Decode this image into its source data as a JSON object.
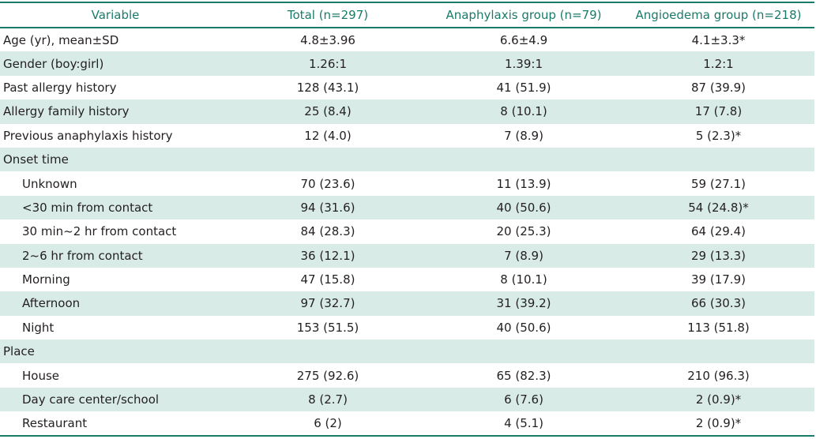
{
  "table": {
    "headers": [
      "Variable",
      "Total (n=297)",
      "Anaphylaxis group (n=79)",
      "Angioedema group (n=218)"
    ],
    "rows": [
      {
        "variable": "Age (yr), mean±SD",
        "total": "4.8±3.96",
        "anaphylaxis": "6.6±4.9",
        "angioedema": "4.1±3.3*",
        "indent": false
      },
      {
        "variable": "Gender (boy:girl)",
        "total": "1.26:1",
        "anaphylaxis": "1.39:1",
        "angioedema": "1.2:1",
        "indent": false
      },
      {
        "variable": "Past allergy history",
        "total": "128 (43.1)",
        "anaphylaxis": "41 (51.9)",
        "angioedema": "87 (39.9)",
        "indent": false
      },
      {
        "variable": "Allergy family history",
        "total": "25 (8.4)",
        "anaphylaxis": "8 (10.1)",
        "angioedema": "17 (7.8)",
        "indent": false
      },
      {
        "variable": "Previous anaphylaxis history",
        "total": "12 (4.0)",
        "anaphylaxis": "7 (8.9)",
        "angioedema": "5 (2.3)*",
        "indent": false
      },
      {
        "variable": "Onset time",
        "total": "",
        "anaphylaxis": "",
        "angioedema": "",
        "indent": false
      },
      {
        "variable": "Unknown",
        "total": "70 (23.6)",
        "anaphylaxis": "11 (13.9)",
        "angioedema": "59 (27.1)",
        "indent": true
      },
      {
        "variable": "<30 min from contact",
        "total": "94 (31.6)",
        "anaphylaxis": "40 (50.6)",
        "angioedema": "54 (24.8)*",
        "indent": true
      },
      {
        "variable": "30 min~2 hr from contact",
        "total": "84 (28.3)",
        "anaphylaxis": "20 (25.3)",
        "angioedema": "64 (29.4)",
        "indent": true
      },
      {
        "variable": "2~6 hr from contact",
        "total": "36 (12.1)",
        "anaphylaxis": "7 (8.9)",
        "angioedema": "29 (13.3)",
        "indent": true
      },
      {
        "variable": "Morning",
        "total": "47 (15.8)",
        "anaphylaxis": "8 (10.1)",
        "angioedema": "39 (17.9)",
        "indent": true
      },
      {
        "variable": "Afternoon",
        "total": "97 (32.7)",
        "anaphylaxis": "31 (39.2)",
        "angioedema": "66 (30.3)",
        "indent": true
      },
      {
        "variable": "Night",
        "total": "153 (51.5)",
        "anaphylaxis": "40 (50.6)",
        "angioedema": "113 (51.8)",
        "indent": true
      },
      {
        "variable": "Place",
        "total": "",
        "anaphylaxis": "",
        "angioedema": "",
        "indent": false
      },
      {
        "variable": "House",
        "total": "275 (92.6)",
        "anaphylaxis": "65 (82.3)",
        "angioedema": "210 (96.3)",
        "indent": true
      },
      {
        "variable": "Day care center/school",
        "total": "8 (2.7)",
        "anaphylaxis": "6 (7.6)",
        "angioedema": "2 (0.9)*",
        "indent": true
      },
      {
        "variable": "Restaurant",
        "total": "6 (2)",
        "anaphylaxis": "4 (5.1)",
        "angioedema": "2 (0.9)*",
        "indent": true
      }
    ]
  },
  "colors": {
    "accent": "#1b7b6a",
    "row_shade": "#d8ebe7",
    "text": "#231f20"
  }
}
